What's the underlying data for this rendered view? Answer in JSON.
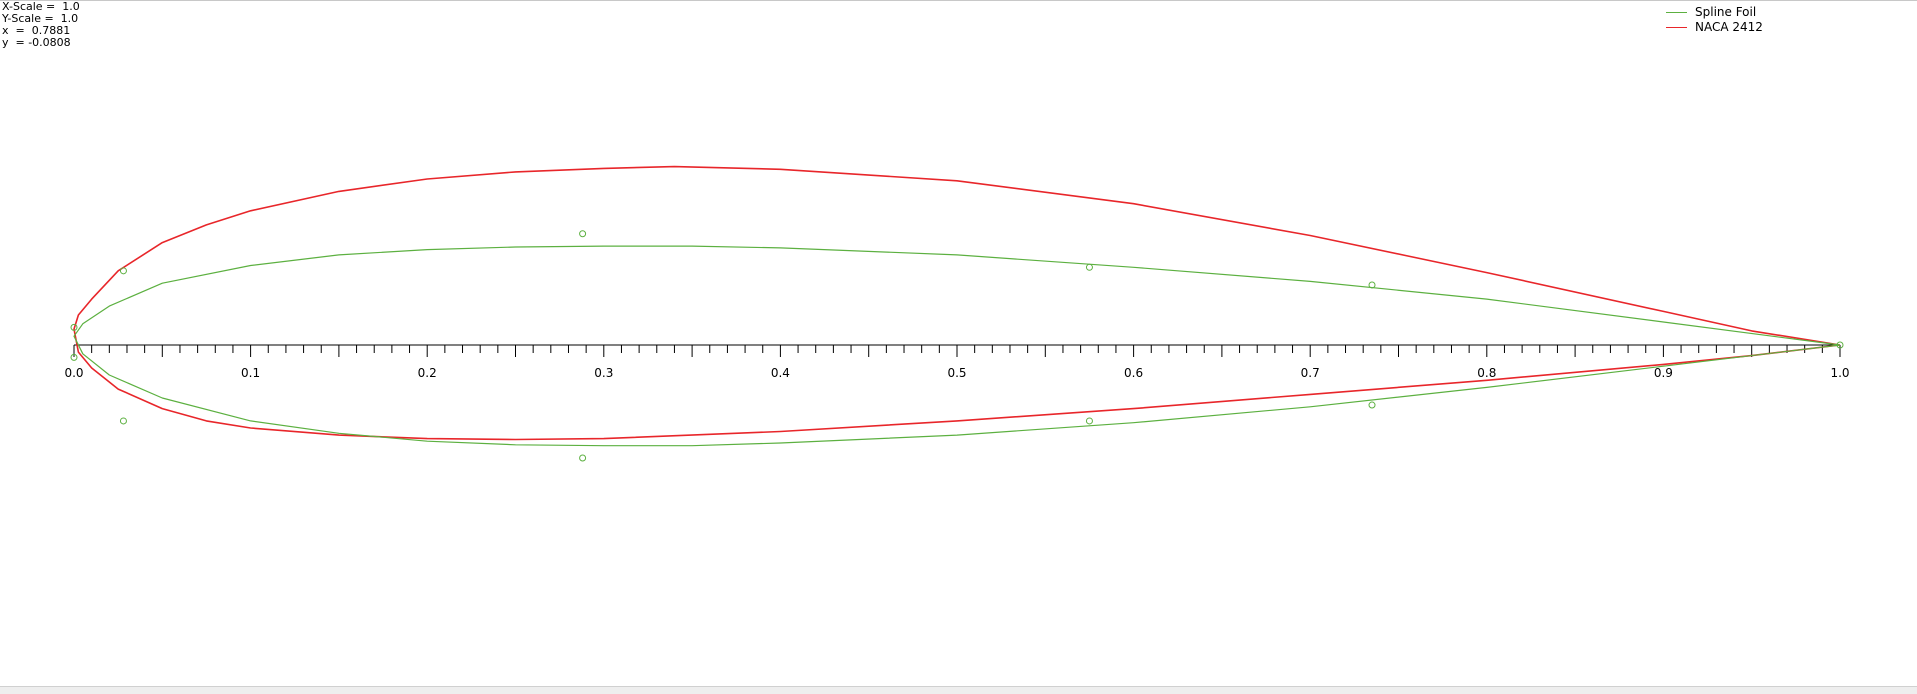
{
  "readout": {
    "x_scale": "X-Scale =  1.0",
    "y_scale": "Y-Scale =  1.0",
    "x": "x  =  0.7881",
    "y": "y  = -0.0808"
  },
  "legend": [
    {
      "label": "Spline Foil",
      "color": "#5cb040"
    },
    {
      "label": "NACA 2412",
      "color": "#e8262a"
    }
  ],
  "chart_data": {
    "type": "line",
    "xlim": [
      0.0,
      1.0
    ],
    "x_ticks": [
      "0.0",
      "0.1",
      "0.2",
      "0.3",
      "0.4",
      "0.5",
      "0.6",
      "0.7",
      "0.8",
      "0.9",
      "1.0"
    ],
    "minor_tick_step": 0.01,
    "grid": false,
    "legend_position": "top-right",
    "series": [
      {
        "name": "NACA 2412",
        "color": "#e8262a",
        "upper": [
          [
            0,
            0.009
          ],
          [
            0.0025,
            0.017
          ],
          [
            0.01,
            0.026
          ],
          [
            0.025,
            0.042
          ],
          [
            0.05,
            0.058
          ],
          [
            0.075,
            0.068
          ],
          [
            0.1,
            0.076
          ],
          [
            0.15,
            0.087
          ],
          [
            0.2,
            0.094
          ],
          [
            0.25,
            0.098
          ],
          [
            0.3,
            0.1
          ],
          [
            0.34,
            0.101
          ],
          [
            0.4,
            0.0995
          ],
          [
            0.5,
            0.093
          ],
          [
            0.6,
            0.08
          ],
          [
            0.7,
            0.062
          ],
          [
            0.8,
            0.041
          ],
          [
            0.9,
            0.019
          ],
          [
            0.95,
            0.008
          ],
          [
            1.0,
            0.0
          ]
        ],
        "lower": [
          [
            0,
            0.009
          ],
          [
            0.0025,
            -0.004
          ],
          [
            0.01,
            -0.013
          ],
          [
            0.025,
            -0.025
          ],
          [
            0.05,
            -0.036
          ],
          [
            0.075,
            -0.043
          ],
          [
            0.1,
            -0.047
          ],
          [
            0.15,
            -0.051
          ],
          [
            0.2,
            -0.053
          ],
          [
            0.25,
            -0.0535
          ],
          [
            0.3,
            -0.053
          ],
          [
            0.4,
            -0.049
          ],
          [
            0.5,
            -0.043
          ],
          [
            0.6,
            -0.036
          ],
          [
            0.7,
            -0.028
          ],
          [
            0.8,
            -0.02
          ],
          [
            0.9,
            -0.011
          ],
          [
            0.95,
            -0.006
          ],
          [
            1.0,
            0.0
          ]
        ]
      },
      {
        "name": "Spline Foil",
        "color": "#5cb040",
        "upper": [
          [
            0,
            0.005
          ],
          [
            0.005,
            0.012
          ],
          [
            0.02,
            0.022
          ],
          [
            0.05,
            0.035
          ],
          [
            0.1,
            0.045
          ],
          [
            0.15,
            0.051
          ],
          [
            0.2,
            0.054
          ],
          [
            0.25,
            0.0555
          ],
          [
            0.3,
            0.056
          ],
          [
            0.35,
            0.056
          ],
          [
            0.4,
            0.055
          ],
          [
            0.5,
            0.051
          ],
          [
            0.6,
            0.044
          ],
          [
            0.7,
            0.036
          ],
          [
            0.8,
            0.026
          ],
          [
            0.9,
            0.013
          ],
          [
            1.0,
            0.0
          ]
        ],
        "lower": [
          [
            0,
            0.005
          ],
          [
            0.005,
            -0.005
          ],
          [
            0.02,
            -0.017
          ],
          [
            0.05,
            -0.03
          ],
          [
            0.1,
            -0.043
          ],
          [
            0.15,
            -0.05
          ],
          [
            0.2,
            -0.0545
          ],
          [
            0.25,
            -0.0565
          ],
          [
            0.3,
            -0.057
          ],
          [
            0.35,
            -0.057
          ],
          [
            0.4,
            -0.0555
          ],
          [
            0.5,
            -0.051
          ],
          [
            0.6,
            -0.044
          ],
          [
            0.7,
            -0.035
          ],
          [
            0.8,
            -0.024
          ],
          [
            0.9,
            -0.012
          ],
          [
            1.0,
            0.0
          ]
        ]
      }
    ],
    "control_points": [
      [
        0,
        0.01
      ],
      [
        0,
        -0.007
      ],
      [
        0.028,
        0.042
      ],
      [
        0.028,
        -0.043
      ],
      [
        0.288,
        0.063
      ],
      [
        0.288,
        -0.064
      ],
      [
        0.575,
        0.044
      ],
      [
        0.575,
        -0.043
      ],
      [
        0.735,
        0.034
      ],
      [
        0.735,
        -0.034
      ],
      [
        1.0,
        0.0
      ]
    ],
    "control_point_color": "#5cb040"
  }
}
